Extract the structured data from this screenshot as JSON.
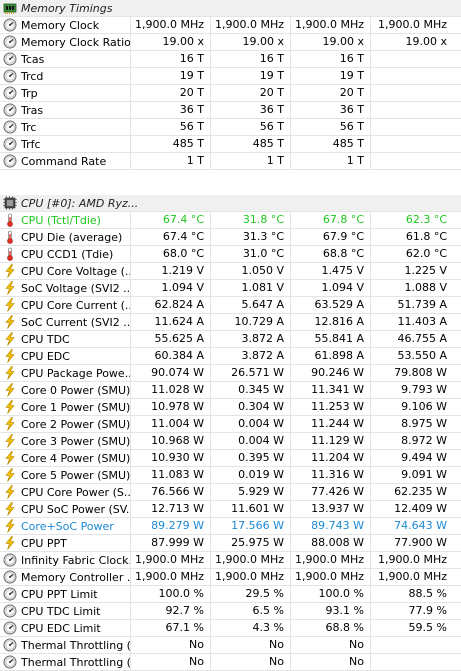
{
  "sections": [
    {
      "title": "Memory Timings",
      "title_icon": "memory-chip-icon",
      "rows": [
        {
          "label": "Memory Clock",
          "icon": "clock-gauge-icon",
          "values": [
            "1,900.0 MHz",
            "1,900.0 MHz",
            "1,900.0 MHz",
            "1,900.0 MHz"
          ]
        },
        {
          "label": "Memory Clock Ratio",
          "icon": "clock-gauge-icon",
          "values": [
            "19.00 x",
            "19.00 x",
            "19.00 x",
            "19.00 x"
          ]
        },
        {
          "label": "Tcas",
          "icon": "clock-gauge-icon",
          "values": [
            "16 T",
            "16 T",
            "16 T",
            ""
          ]
        },
        {
          "label": "Trcd",
          "icon": "clock-gauge-icon",
          "values": [
            "19 T",
            "19 T",
            "19 T",
            ""
          ]
        },
        {
          "label": "Trp",
          "icon": "clock-gauge-icon",
          "values": [
            "20 T",
            "20 T",
            "20 T",
            ""
          ]
        },
        {
          "label": "Tras",
          "icon": "clock-gauge-icon",
          "values": [
            "36 T",
            "36 T",
            "36 T",
            ""
          ]
        },
        {
          "label": "Trc",
          "icon": "clock-gauge-icon",
          "values": [
            "56 T",
            "56 T",
            "56 T",
            ""
          ]
        },
        {
          "label": "Trfc",
          "icon": "clock-gauge-icon",
          "values": [
            "485 T",
            "485 T",
            "485 T",
            ""
          ]
        },
        {
          "label": "Command Rate",
          "icon": "clock-gauge-icon",
          "values": [
            "1 T",
            "1 T",
            "1 T",
            ""
          ]
        }
      ]
    },
    {
      "title": "CPU [#0]: AMD Ryz...",
      "title_icon": "cpu-chip-icon",
      "rows": [
        {
          "label": "CPU (Tctl/Tdie)",
          "icon": "thermometer-icon",
          "color": "green",
          "values": [
            "67.4 °C",
            "31.8 °C",
            "67.8 °C",
            "62.3 °C"
          ]
        },
        {
          "label": "CPU Die (average)",
          "icon": "thermometer-icon",
          "values": [
            "67.4 °C",
            "31.3 °C",
            "67.9 °C",
            "61.8 °C"
          ]
        },
        {
          "label": "CPU CCD1 (Tdie)",
          "icon": "thermometer-icon",
          "values": [
            "68.0 °C",
            "31.0 °C",
            "68.8 °C",
            "62.0 °C"
          ]
        },
        {
          "label": "CPU Core Voltage (...",
          "icon": "lightning-bolt-icon",
          "values": [
            "1.219 V",
            "1.050 V",
            "1.475 V",
            "1.225 V"
          ]
        },
        {
          "label": "SoC Voltage (SVI2 ...",
          "icon": "lightning-bolt-icon",
          "values": [
            "1.094 V",
            "1.081 V",
            "1.094 V",
            "1.088 V"
          ]
        },
        {
          "label": "CPU Core Current (...",
          "icon": "lightning-bolt-icon",
          "values": [
            "62.824 A",
            "5.647 A",
            "63.529 A",
            "51.739 A"
          ]
        },
        {
          "label": "SoC Current (SVI2 ...",
          "icon": "lightning-bolt-icon",
          "values": [
            "11.624 A",
            "10.729 A",
            "12.816 A",
            "11.403 A"
          ]
        },
        {
          "label": "CPU TDC",
          "icon": "lightning-bolt-icon",
          "values": [
            "55.625 A",
            "3.872 A",
            "55.841 A",
            "46.755 A"
          ]
        },
        {
          "label": "CPU EDC",
          "icon": "lightning-bolt-icon",
          "values": [
            "60.384 A",
            "3.872 A",
            "61.898 A",
            "53.550 A"
          ]
        },
        {
          "label": "CPU Package Powe...",
          "icon": "lightning-bolt-icon",
          "values": [
            "90.074 W",
            "26.571 W",
            "90.246 W",
            "79.808 W"
          ]
        },
        {
          "label": "Core 0 Power (SMU)",
          "icon": "lightning-bolt-icon",
          "values": [
            "11.028 W",
            "0.345 W",
            "11.341 W",
            "9.793 W"
          ]
        },
        {
          "label": "Core 1 Power (SMU)",
          "icon": "lightning-bolt-icon",
          "values": [
            "10.978 W",
            "0.304 W",
            "11.253 W",
            "9.106 W"
          ]
        },
        {
          "label": "Core 2 Power (SMU)",
          "icon": "lightning-bolt-icon",
          "values": [
            "11.004 W",
            "0.004 W",
            "11.244 W",
            "8.975 W"
          ]
        },
        {
          "label": "Core 3 Power (SMU)",
          "icon": "lightning-bolt-icon",
          "values": [
            "10.968 W",
            "0.004 W",
            "11.129 W",
            "8.972 W"
          ]
        },
        {
          "label": "Core 4 Power (SMU)",
          "icon": "lightning-bolt-icon",
          "values": [
            "10.930 W",
            "0.395 W",
            "11.204 W",
            "9.494 W"
          ]
        },
        {
          "label": "Core 5 Power (SMU)",
          "icon": "lightning-bolt-icon",
          "values": [
            "11.083 W",
            "0.019 W",
            "11.316 W",
            "9.091 W"
          ]
        },
        {
          "label": "CPU Core Power (S...",
          "icon": "lightning-bolt-icon",
          "values": [
            "76.566 W",
            "5.929 W",
            "77.426 W",
            "62.235 W"
          ]
        },
        {
          "label": "CPU SoC Power (SV...",
          "icon": "lightning-bolt-icon",
          "values": [
            "12.713 W",
            "11.601 W",
            "13.937 W",
            "12.409 W"
          ]
        },
        {
          "label": "Core+SoC Power",
          "icon": "lightning-bolt-icon",
          "color": "blue",
          "values": [
            "89.279 W",
            "17.566 W",
            "89.743 W",
            "74.643 W"
          ]
        },
        {
          "label": "CPU PPT",
          "icon": "lightning-bolt-icon",
          "values": [
            "87.999 W",
            "25.975 W",
            "88.008 W",
            "77.900 W"
          ]
        },
        {
          "label": "Infinity Fabric Clock...",
          "icon": "clock-gauge-icon",
          "values": [
            "1,900.0 MHz",
            "1,900.0 MHz",
            "1,900.0 MHz",
            "1,900.0 MHz"
          ]
        },
        {
          "label": "Memory Controller ...",
          "icon": "clock-gauge-icon",
          "values": [
            "1,900.0 MHz",
            "1,900.0 MHz",
            "1,900.0 MHz",
            "1,900.0 MHz"
          ]
        },
        {
          "label": "CPU PPT Limit",
          "icon": "clock-gauge-icon",
          "values": [
            "100.0 %",
            "29.5 %",
            "100.0 %",
            "88.5 %"
          ]
        },
        {
          "label": "CPU TDC Limit",
          "icon": "clock-gauge-icon",
          "values": [
            "92.7 %",
            "6.5 %",
            "93.1 %",
            "77.9 %"
          ]
        },
        {
          "label": "CPU EDC Limit",
          "icon": "clock-gauge-icon",
          "values": [
            "67.1 %",
            "4.3 %",
            "68.8 %",
            "59.5 %"
          ]
        },
        {
          "label": "Thermal Throttling (...",
          "icon": "clock-gauge-icon",
          "values": [
            "No",
            "No",
            "No",
            ""
          ]
        },
        {
          "label": "Thermal Throttling (...",
          "icon": "clock-gauge-icon",
          "values": [
            "No",
            "No",
            "No",
            ""
          ]
        }
      ]
    }
  ]
}
